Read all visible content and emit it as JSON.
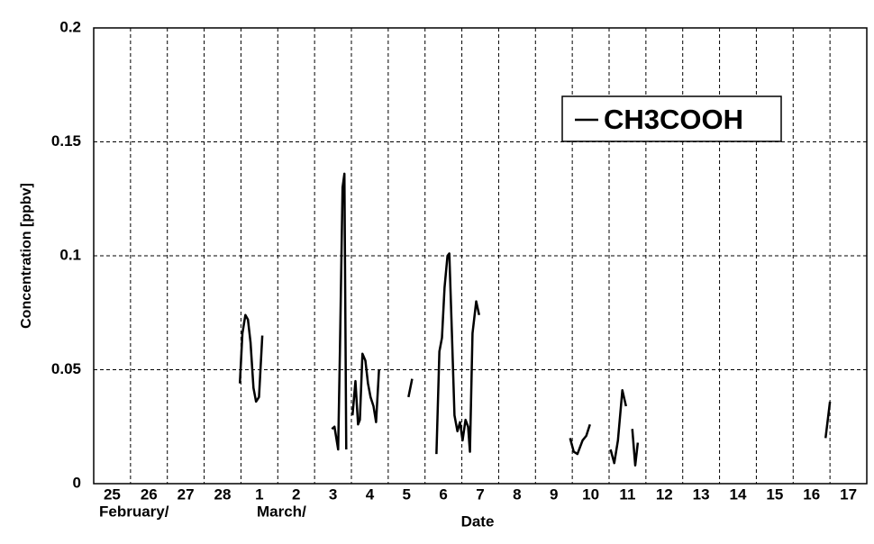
{
  "chart_data": {
    "type": "line",
    "y_label": "Concentration [ppbv]",
    "x_label": "Date",
    "month_labels": [
      "February/",
      "March/"
    ],
    "xlim": [
      0,
      21
    ],
    "xticks": [
      {
        "value": 0.5,
        "label": "25"
      },
      {
        "value": 1.5,
        "label": "26"
      },
      {
        "value": 2.5,
        "label": "27"
      },
      {
        "value": 3.5,
        "label": "28"
      },
      {
        "value": 4.5,
        "label": "1"
      },
      {
        "value": 5.5,
        "label": "2"
      },
      {
        "value": 6.5,
        "label": "3"
      },
      {
        "value": 7.5,
        "label": "4"
      },
      {
        "value": 8.5,
        "label": "5"
      },
      {
        "value": 9.5,
        "label": "6"
      },
      {
        "value": 10.5,
        "label": "7"
      },
      {
        "value": 11.5,
        "label": "8"
      },
      {
        "value": 12.5,
        "label": "9"
      },
      {
        "value": 13.5,
        "label": "10"
      },
      {
        "value": 14.5,
        "label": "11"
      },
      {
        "value": 15.5,
        "label": "12"
      },
      {
        "value": 16.5,
        "label": "13"
      },
      {
        "value": 17.5,
        "label": "14"
      },
      {
        "value": 18.5,
        "label": "15"
      },
      {
        "value": 19.5,
        "label": "16"
      },
      {
        "value": 20.5,
        "label": "17"
      }
    ],
    "ylim": [
      0,
      0.2
    ],
    "yticks": [
      0,
      0.05,
      0.1,
      0.15,
      0.2
    ],
    "grid": true,
    "legend": "upper right",
    "x": [
      3.97,
      4.04,
      4.12,
      4.19,
      4.26,
      4.34,
      4.41,
      4.49,
      4.53,
      4.58,
      null,
      6.47,
      6.54,
      6.64,
      6.69,
      6.76,
      6.81,
      6.86,
      null,
      7.03,
      7.11,
      7.18,
      7.23,
      7.3,
      7.38,
      7.45,
      7.52,
      7.6,
      7.67,
      7.75,
      null,
      8.55,
      8.65,
      null,
      9.31,
      9.39,
      9.46,
      9.53,
      9.61,
      9.66,
      9.73,
      9.8,
      9.88,
      9.95,
      10.02,
      10.1,
      10.17,
      10.22,
      10.29,
      10.39,
      10.47,
      null,
      12.94,
      13.04,
      13.14,
      13.28,
      13.38,
      13.48,
      null,
      14.04,
      14.14,
      14.24,
      14.36,
      14.46,
      null,
      14.63,
      14.71,
      14.78,
      null,
      19.88,
      20.0
    ],
    "series": [
      {
        "name": "CH3COOH",
        "color": "#000000",
        "values": [
          0.044,
          0.066,
          0.074,
          0.072,
          0.062,
          0.042,
          0.036,
          0.038,
          0.05,
          0.065,
          null,
          0.024,
          0.025,
          0.015,
          0.06,
          0.13,
          0.136,
          0.015,
          null,
          0.03,
          0.045,
          0.026,
          0.028,
          0.057,
          0.054,
          0.044,
          0.038,
          0.034,
          0.027,
          0.05,
          null,
          0.038,
          0.046,
          null,
          0.013,
          0.058,
          0.064,
          0.086,
          0.1,
          0.101,
          0.066,
          0.03,
          0.023,
          0.027,
          0.019,
          0.028,
          0.025,
          0.014,
          0.066,
          0.08,
          0.074,
          null,
          0.02,
          0.014,
          0.013,
          0.019,
          0.021,
          0.026,
          null,
          0.015,
          0.009,
          0.019,
          0.041,
          0.034,
          null,
          0.024,
          0.008,
          0.018,
          null,
          0.02,
          0.036
        ]
      }
    ]
  }
}
